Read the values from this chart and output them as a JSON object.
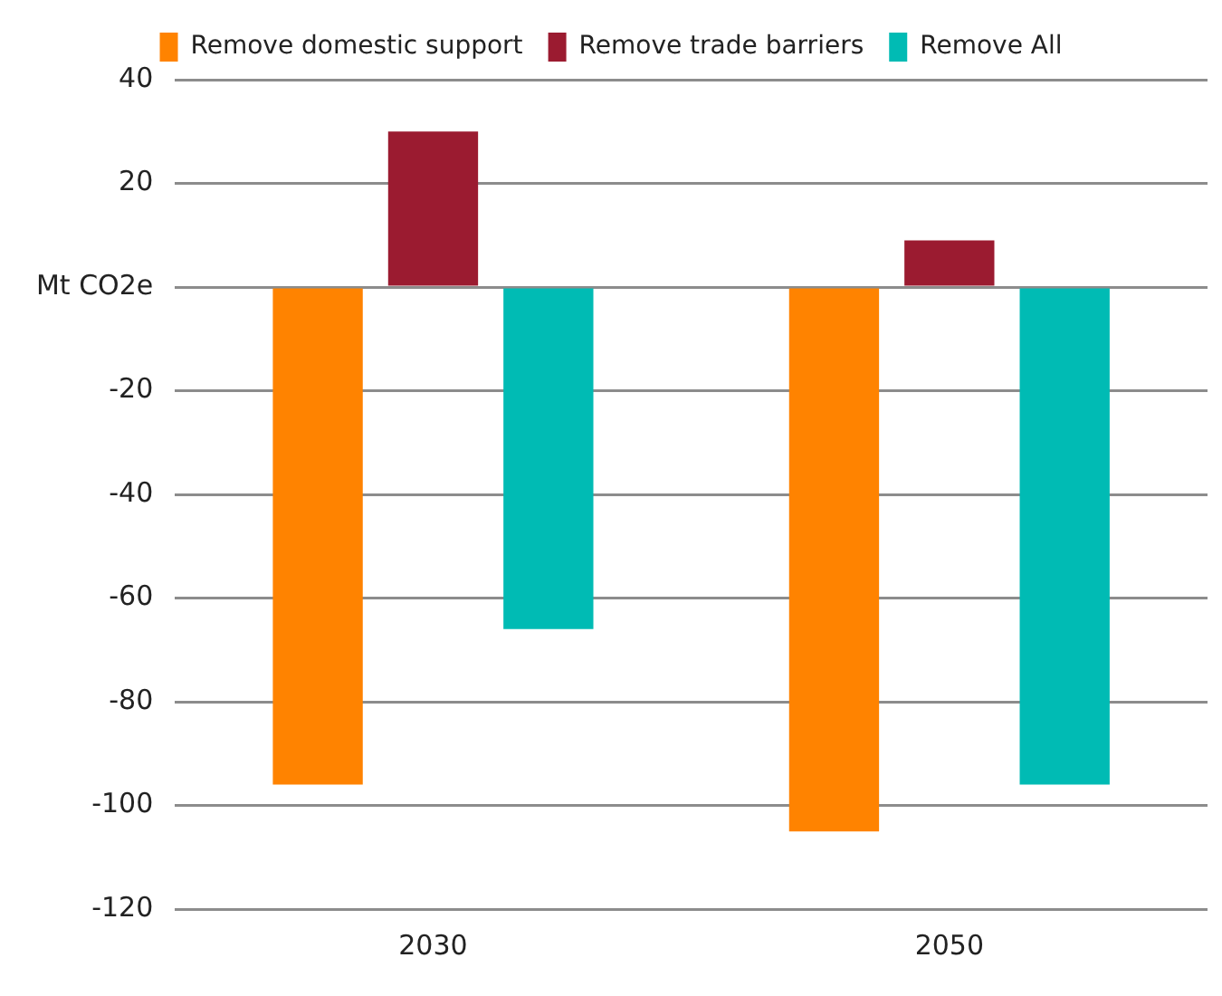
{
  "chart_data": {
    "type": "bar",
    "categories": [
      "2030",
      "2050"
    ],
    "series": [
      {
        "name": "Remove domestic support",
        "color": "#ff8300",
        "values": [
          -96,
          -105
        ]
      },
      {
        "name": "Remove trade barriers",
        "color": "#9b1b30",
        "values": [
          30,
          9
        ]
      },
      {
        "name": "Remove All",
        "color": "#00bbb4",
        "values": [
          -66,
          -96
        ]
      }
    ],
    "ylim": [
      -120,
      40
    ],
    "yticks": [
      -120,
      -100,
      -80,
      -60,
      -40,
      -20,
      {
        "value": 0,
        "label": "Mt CO2e"
      },
      20,
      40
    ],
    "grid": "y",
    "legend": "top"
  }
}
